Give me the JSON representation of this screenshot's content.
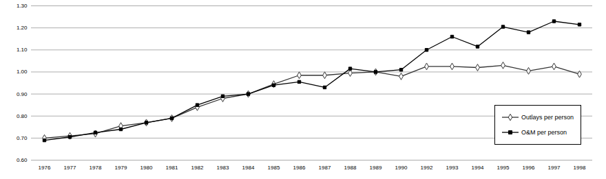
{
  "chart_data": {
    "type": "line",
    "categories": [
      "1976",
      "1977",
      "1978",
      "1979",
      "1980",
      "1981",
      "1982",
      "1983",
      "1984",
      "1985",
      "1986",
      "1987",
      "1988",
      "1989",
      "1990",
      "1992",
      "1993",
      "1994",
      "1995",
      "1996",
      "1997",
      "1998"
    ],
    "series": [
      {
        "name": "Outlays per person",
        "color": "#333333",
        "marker": "open_diamond",
        "values": [
          0.7,
          0.71,
          0.72,
          0.755,
          0.77,
          0.79,
          0.84,
          0.88,
          0.9,
          0.945,
          0.985,
          0.985,
          0.995,
          1.0,
          0.98,
          1.025,
          1.025,
          1.02,
          1.03,
          1.005,
          1.025,
          0.99
        ]
      },
      {
        "name": "O&M per person",
        "color": "#000000",
        "marker": "square",
        "values": [
          0.69,
          0.705,
          0.725,
          0.74,
          0.77,
          0.79,
          0.85,
          0.89,
          0.9,
          0.94,
          0.955,
          0.93,
          1.015,
          1.0,
          1.01,
          1.1,
          1.16,
          1.115,
          1.205,
          1.18,
          1.23,
          1.215
        ]
      }
    ],
    "ylim": [
      0.6,
      1.3
    ],
    "yticks": [
      {
        "value": 0.6,
        "label": "0.60"
      },
      {
        "value": 0.7,
        "label": "0.70"
      },
      {
        "value": 0.8,
        "label": "0.80"
      },
      {
        "value": 0.9,
        "label": "0.90"
      },
      {
        "value": 1.0,
        "label": "1.00"
      },
      {
        "value": 1.1,
        "label": "1.10"
      },
      {
        "value": 1.2,
        "label": "1.20"
      },
      {
        "value": 1.3,
        "label": "1.30"
      }
    ],
    "grid": true,
    "legend": "lower right"
  }
}
